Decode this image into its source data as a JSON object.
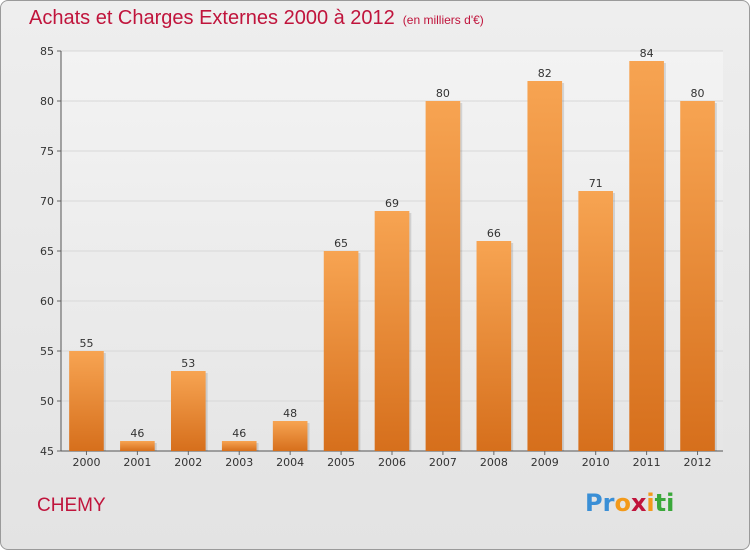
{
  "header": {
    "title": "Achats et Charges Externes 2000 à 2012",
    "subtitle": "(en milliers d'€)"
  },
  "footer": {
    "commune": "CHEMY",
    "logo": {
      "letters": [
        "P",
        "r",
        "o",
        "x",
        "i",
        "t",
        "i"
      ],
      "colors": [
        "#3a8fd6",
        "#3a8fd6",
        "#f39a1a",
        "#c0143c",
        "#f39a1a",
        "#3aa83a",
        "#3aa83a"
      ]
    }
  },
  "chart_data": {
    "type": "bar",
    "title": "Achats et Charges Externes 2000 à 2012",
    "subtitle": "(en milliers d'€)",
    "categories": [
      "2000",
      "2001",
      "2002",
      "2003",
      "2004",
      "2005",
      "2006",
      "2007",
      "2008",
      "2009",
      "2010",
      "2011",
      "2012"
    ],
    "values": [
      55,
      46,
      53,
      46,
      48,
      65,
      69,
      80,
      66,
      82,
      71,
      84,
      80
    ],
    "data_labels": [
      "55",
      "46",
      "53",
      "46",
      "48",
      "65",
      "69",
      "80",
      "66",
      "82",
      "71",
      "84",
      "80"
    ],
    "ylim": [
      45,
      85
    ],
    "yticks": [
      45,
      50,
      55,
      60,
      65,
      70,
      75,
      80,
      85
    ],
    "grid": true,
    "bar_color_light": "#f7a452",
    "bar_color_dark": "#d66f1c"
  }
}
